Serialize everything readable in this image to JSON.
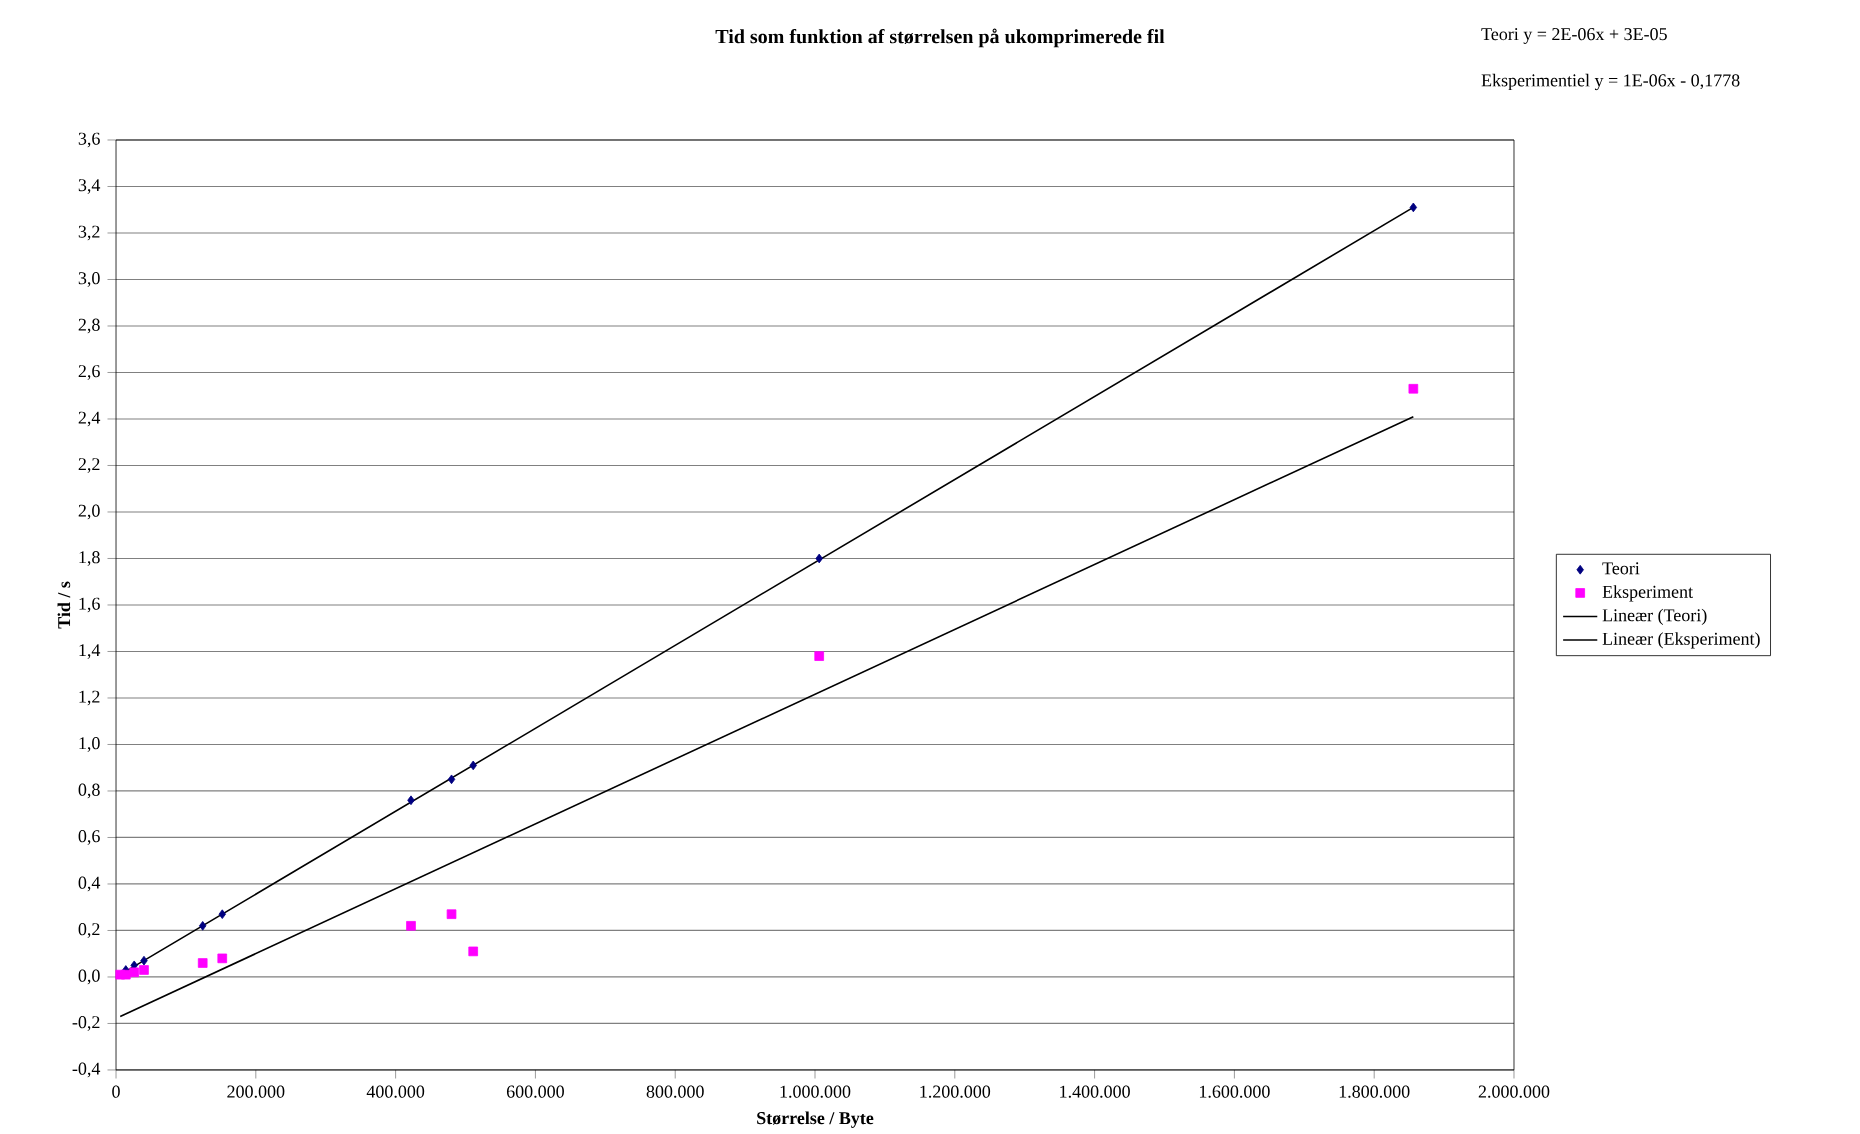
{
  "chart_data": {
    "type": "scatter",
    "title": "Tid som funktion af størrelsen på ukomprimerede fil",
    "xlabel": "Størrelse / Byte",
    "ylabel": "Tid / s",
    "annotations": [
      "Teori y = 2E-06x + 3E-05",
      "Eksperimentiel y = 1E-06x - 0,1778"
    ],
    "series": [
      {
        "name": "Teori",
        "color": "#000080",
        "marker": "diamond",
        "x": [
          14000,
          26000,
          40000,
          124000,
          152000,
          422000,
          480000,
          511000,
          1006000,
          1856000
        ],
        "values": [
          0.03,
          0.05,
          0.07,
          0.22,
          0.27,
          0.76,
          0.85,
          0.91,
          1.8,
          3.31
        ]
      },
      {
        "name": "Eksperiment",
        "color": "#ff00ff",
        "marker": "square",
        "x": [
          6000,
          14000,
          26000,
          40000,
          124000,
          152000,
          422000,
          480000,
          511000,
          1006000,
          1856000
        ],
        "values": [
          0.01,
          0.01,
          0.02,
          0.03,
          0.06,
          0.08,
          0.22,
          0.27,
          0.11,
          1.38,
          2.53
        ]
      },
      {
        "name": "Lineær (Teori)",
        "type": "line",
        "color": "#000000",
        "marker": "none",
        "x": [
          6000,
          1856000
        ],
        "values": [
          0.01,
          3.31
        ]
      },
      {
        "name": "Lineær (Eksperiment)",
        "type": "line",
        "color": "#000000",
        "marker": "none",
        "x": [
          6000,
          1856000
        ],
        "values": [
          -0.17,
          2.41
        ]
      }
    ],
    "xlim": [
      0,
      2000000
    ],
    "ylim": [
      -0.4,
      3.6
    ],
    "xticks": [
      0,
      {
        "value": 200000,
        "label": "200.000"
      },
      {
        "value": 400000,
        "label": "400.000"
      },
      {
        "value": 600000,
        "label": "600.000"
      },
      {
        "value": 800000,
        "label": "800.000"
      },
      {
        "value": 1000000,
        "label": "1.000.000"
      },
      {
        "value": 1200000,
        "label": "1.200.000"
      },
      {
        "value": 1400000,
        "label": "1.400.000"
      },
      {
        "value": 1600000,
        "label": "1.600.000"
      },
      {
        "value": 1800000,
        "label": "1.800.000"
      },
      {
        "value": 2000000,
        "label": "2.000.000"
      }
    ],
    "yticks": [
      {
        "value": -0.4,
        "label": "-0,4"
      },
      {
        "value": -0.2,
        "label": "-0,2"
      },
      {
        "value": 0.0,
        "label": "0,0"
      },
      {
        "value": 0.2,
        "label": "0,2"
      },
      {
        "value": 0.4,
        "label": "0,4"
      },
      {
        "value": 0.6,
        "label": "0,6"
      },
      {
        "value": 0.8,
        "label": "0,8"
      },
      {
        "value": 1.0,
        "label": "1,0"
      },
      {
        "value": 1.2,
        "label": "1,2"
      },
      {
        "value": 1.4,
        "label": "1,4"
      },
      {
        "value": 1.6,
        "label": "1,6"
      },
      {
        "value": 1.8,
        "label": "1,8"
      },
      {
        "value": 2.0,
        "label": "2,0"
      },
      {
        "value": 2.2,
        "label": "2,2"
      },
      {
        "value": 2.4,
        "label": "2,4"
      },
      {
        "value": 2.6,
        "label": "2,6"
      },
      {
        "value": 2.8,
        "label": "2,8"
      },
      {
        "value": 3.0,
        "label": "3,0"
      },
      {
        "value": 3.2,
        "label": "3,2"
      },
      {
        "value": 3.4,
        "label": "3,4"
      },
      {
        "value": 3.6,
        "label": "3,6"
      }
    ],
    "grid": "y",
    "legend": "right"
  }
}
